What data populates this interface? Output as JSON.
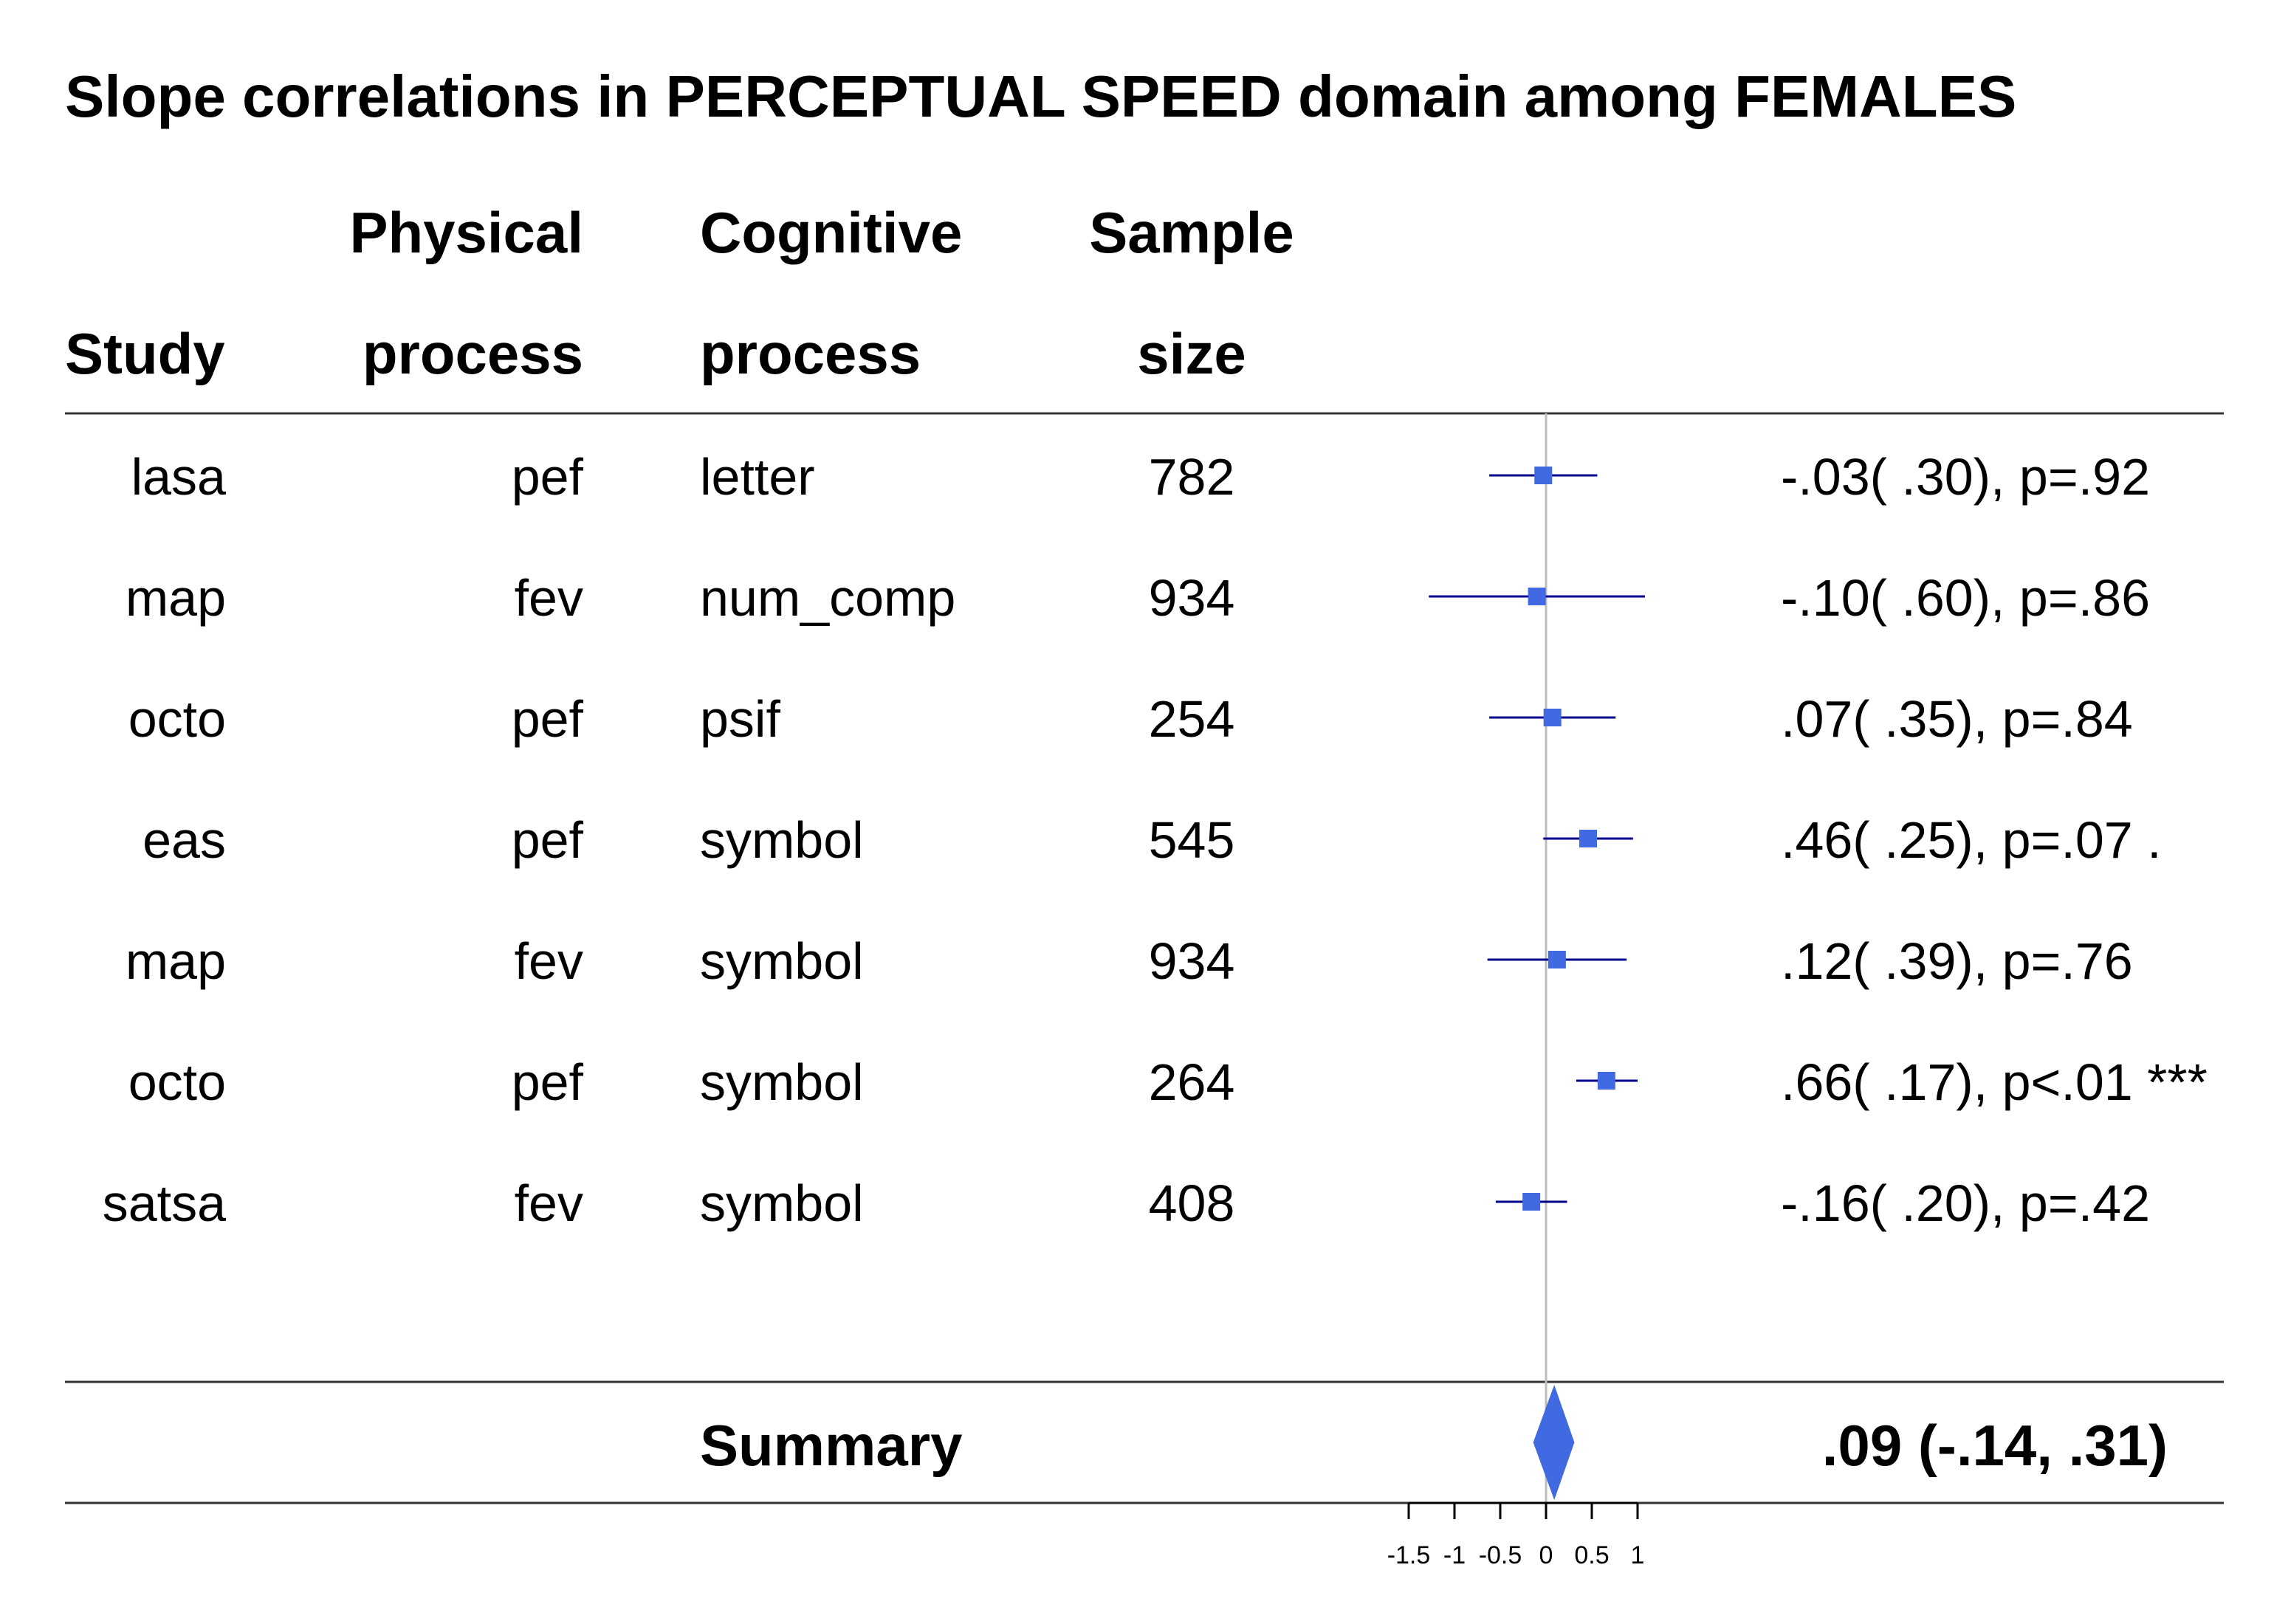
{
  "chart_data": {
    "type": "forest",
    "title": "Slope correlations in PERCEPTUAL SPEED domain among FEMALES",
    "columns": {
      "study": {
        "line1": "",
        "line2": "Study"
      },
      "physical": {
        "line1": "Physical",
        "line2": "process"
      },
      "cognitive": {
        "line1": "Cognitive",
        "line2": "process"
      },
      "sample": {
        "line1": "Sample",
        "line2": "size"
      }
    },
    "rows": [
      {
        "study": "lasa",
        "physical": "pef",
        "cognitive": "letter",
        "n": "782",
        "estimate": -0.03,
        "lower": -0.62,
        "upper": 0.56,
        "label": "-.03( .30), p=.92"
      },
      {
        "study": "map",
        "physical": "fev",
        "cognitive": "num_comp",
        "n": "934",
        "estimate": -0.1,
        "lower": -1.28,
        "upper": 1.08,
        "label": "-.10( .60), p=.86"
      },
      {
        "study": "octo",
        "physical": "pef",
        "cognitive": "psif",
        "n": "254",
        "estimate": 0.07,
        "lower": -0.62,
        "upper": 0.76,
        "label": ".07( .35), p=.84"
      },
      {
        "study": "eas",
        "physical": "pef",
        "cognitive": "symbol",
        "n": "545",
        "estimate": 0.46,
        "lower": -0.03,
        "upper": 0.95,
        "label": ".46( .25), p=.07 ."
      },
      {
        "study": "map",
        "physical": "fev",
        "cognitive": "symbol",
        "n": "934",
        "estimate": 0.12,
        "lower": -0.64,
        "upper": 0.88,
        "label": ".12( .39), p=.76"
      },
      {
        "study": "octo",
        "physical": "pef",
        "cognitive": "symbol",
        "n": "264",
        "estimate": 0.66,
        "lower": 0.33,
        "upper": 1.0,
        "label": ".66( .17), p<.01 ***"
      },
      {
        "study": "satsa",
        "physical": "fev",
        "cognitive": "symbol",
        "n": "408",
        "estimate": -0.16,
        "lower": -0.55,
        "upper": 0.23,
        "label": "-.16( .20), p=.42"
      }
    ],
    "summary": {
      "label": "Summary",
      "estimate": 0.09,
      "lower": -0.14,
      "upper": 0.31,
      "text": ".09 (-.14, .31)"
    },
    "xaxis": {
      "ticks": [
        -1.5,
        -1,
        -0.5,
        0,
        0.5,
        1
      ],
      "tick_labels": [
        "-1.5",
        "-1",
        "-0.5",
        "0",
        "0.5",
        "1"
      ],
      "reference_line": 0
    },
    "colors": {
      "marker": "#4169E1",
      "ci_line": "#00008B",
      "reference": "#BEBEBE",
      "rule": "#333333"
    }
  }
}
